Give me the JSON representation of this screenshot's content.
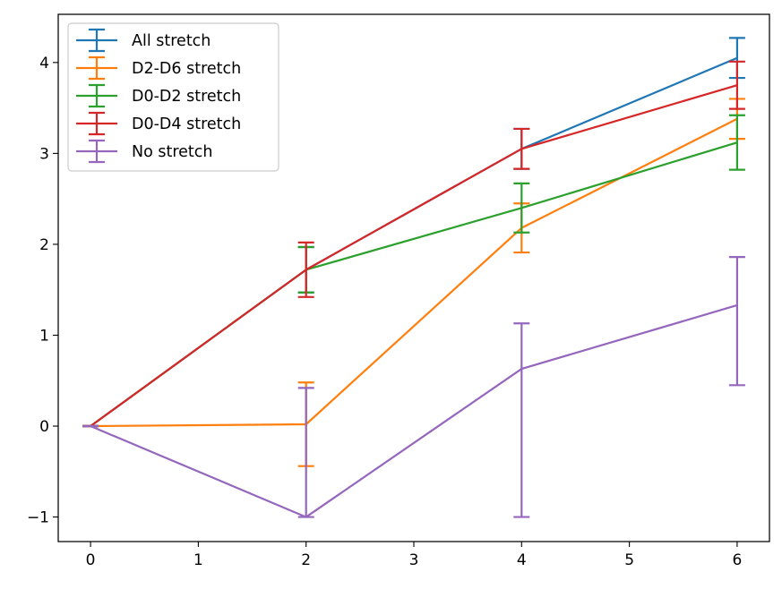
{
  "chart_data": {
    "type": "line",
    "title": "",
    "xlabel": "",
    "ylabel": "",
    "xlim": [
      -0.3,
      6.3
    ],
    "ylim": [
      -1.27,
      4.53
    ],
    "xticks": [
      0,
      1,
      2,
      3,
      4,
      5,
      6
    ],
    "yticks": [
      -1,
      0,
      1,
      2,
      3,
      4
    ],
    "xtick_labels": [
      "0",
      "1",
      "2",
      "3",
      "4",
      "5",
      "6"
    ],
    "ytick_labels": [
      "−1",
      "0",
      "1",
      "2",
      "3",
      "4"
    ],
    "grid": false,
    "legend_position": "upper-left",
    "series": [
      {
        "name": "All stretch",
        "color": "#1f77b4",
        "x": [
          0,
          2,
          4,
          6
        ],
        "y": [
          0,
          1.72,
          3.05,
          4.05
        ],
        "yerr": [
          0,
          0.25,
          0.22,
          0.22
        ]
      },
      {
        "name": "D2-D6 stretch",
        "color": "#ff7f0e",
        "x": [
          0,
          2,
          4,
          6
        ],
        "y": [
          0,
          0.02,
          2.18,
          3.38
        ],
        "yerr": [
          0,
          0.46,
          0.27,
          0.22
        ]
      },
      {
        "name": "D0-D2 stretch",
        "color": "#2ca02c",
        "x": [
          0,
          2,
          4,
          6
        ],
        "y": [
          0,
          1.72,
          2.4,
          3.12
        ],
        "yerr": [
          0,
          0.25,
          0.27,
          0.3
        ]
      },
      {
        "name": "D0-D4 stretch",
        "color": "#d62728",
        "x": [
          0,
          2,
          4,
          6
        ],
        "y": [
          0,
          1.72,
          3.05,
          3.75
        ],
        "yerr": [
          0,
          0.3,
          0.22,
          0.26
        ]
      },
      {
        "name": "No stretch",
        "color": "#9467bd",
        "x": [
          0,
          2,
          4,
          6
        ],
        "y": [
          0,
          -1.0,
          0.63,
          1.33
        ],
        "yerr": [
          0,
          0.0,
          0.5,
          0.53
        ],
        "yerr_lower": [
          0,
          0.0,
          1.63,
          0.88
        ],
        "yerr_upper": [
          0,
          1.42,
          0.5,
          0.53
        ]
      }
    ]
  }
}
